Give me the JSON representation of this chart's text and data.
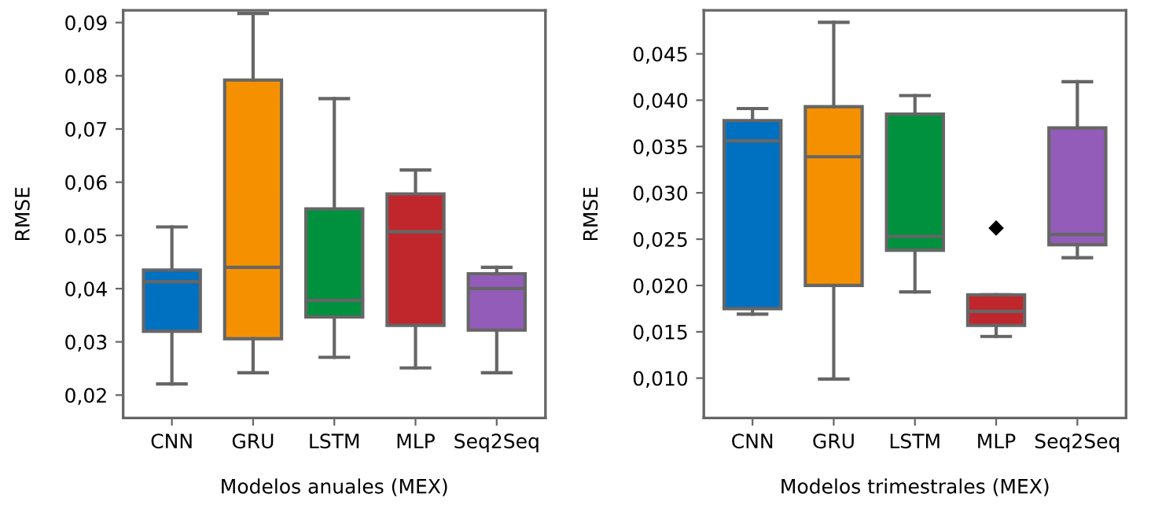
{
  "chart_data": [
    {
      "type": "box",
      "xlabel": "Modelos anuales (MEX)",
      "ylabel": "RMSE",
      "categories": [
        "CNN",
        "GRU",
        "LSTM",
        "MLP",
        "Seq2Seq"
      ],
      "colors": [
        "#0070c0",
        "#f59100",
        "#00913e",
        "#c0272d",
        "#925cb8"
      ],
      "boxes": [
        {
          "low": 0.0221,
          "q1": 0.032,
          "median": 0.0413,
          "q3": 0.0435,
          "high": 0.0516
        },
        {
          "low": 0.0242,
          "q1": 0.0306,
          "median": 0.044,
          "q3": 0.0792,
          "high": 0.0917
        },
        {
          "low": 0.0271,
          "q1": 0.0347,
          "median": 0.0378,
          "q3": 0.055,
          "high": 0.0757
        },
        {
          "low": 0.0251,
          "q1": 0.0331,
          "median": 0.0507,
          "q3": 0.0578,
          "high": 0.0623
        },
        {
          "low": 0.0242,
          "q1": 0.0322,
          "median": 0.04,
          "q3": 0.0428,
          "high": 0.044
        }
      ],
      "ylim": [
        0.0157,
        0.0923
      ],
      "yticks": [
        {
          "value": 0.02,
          "label": "0,02"
        },
        {
          "value": 0.03,
          "label": "0,03"
        },
        {
          "value": 0.04,
          "label": "0,04"
        },
        {
          "value": 0.05,
          "label": "0,05"
        },
        {
          "value": 0.06,
          "label": "0,06"
        },
        {
          "value": 0.07,
          "label": "0,07"
        },
        {
          "value": 0.08,
          "label": "0,08"
        },
        {
          "value": 0.09,
          "label": "0,09"
        }
      ],
      "grid": false
    },
    {
      "type": "box",
      "xlabel": "Modelos trimestrales (MEX)",
      "ylabel": "RMSE",
      "categories": [
        "CNN",
        "GRU",
        "LSTM",
        "MLP",
        "Seq2Seq"
      ],
      "colors": [
        "#0070c0",
        "#f59100",
        "#00913e",
        "#c0272d",
        "#925cb8"
      ],
      "boxes": [
        {
          "low": 0.0169,
          "q1": 0.0175,
          "median": 0.0356,
          "q3": 0.0378,
          "high": 0.0391
        },
        {
          "low": 0.0099,
          "q1": 0.02,
          "median": 0.0339,
          "q3": 0.0393,
          "high": 0.0484
        },
        {
          "low": 0.0193,
          "q1": 0.0238,
          "median": 0.0253,
          "q3": 0.0385,
          "high": 0.0405
        },
        {
          "low": 0.0145,
          "q1": 0.0157,
          "median": 0.0172,
          "q3": 0.019,
          "high": 0.019,
          "outliers": [
            0.0262
          ]
        },
        {
          "low": 0.023,
          "q1": 0.0244,
          "median": 0.0255,
          "q3": 0.037,
          "high": 0.042
        }
      ],
      "ylim": [
        0.0057,
        0.0497
      ],
      "yticks": [
        {
          "value": 0.01,
          "label": "0,010"
        },
        {
          "value": 0.015,
          "label": "0,015"
        },
        {
          "value": 0.02,
          "label": "0,020"
        },
        {
          "value": 0.025,
          "label": "0,025"
        },
        {
          "value": 0.03,
          "label": "0,030"
        },
        {
          "value": 0.035,
          "label": "0,035"
        },
        {
          "value": 0.04,
          "label": "0,040"
        },
        {
          "value": 0.045,
          "label": "0,045"
        }
      ],
      "grid": false
    }
  ]
}
